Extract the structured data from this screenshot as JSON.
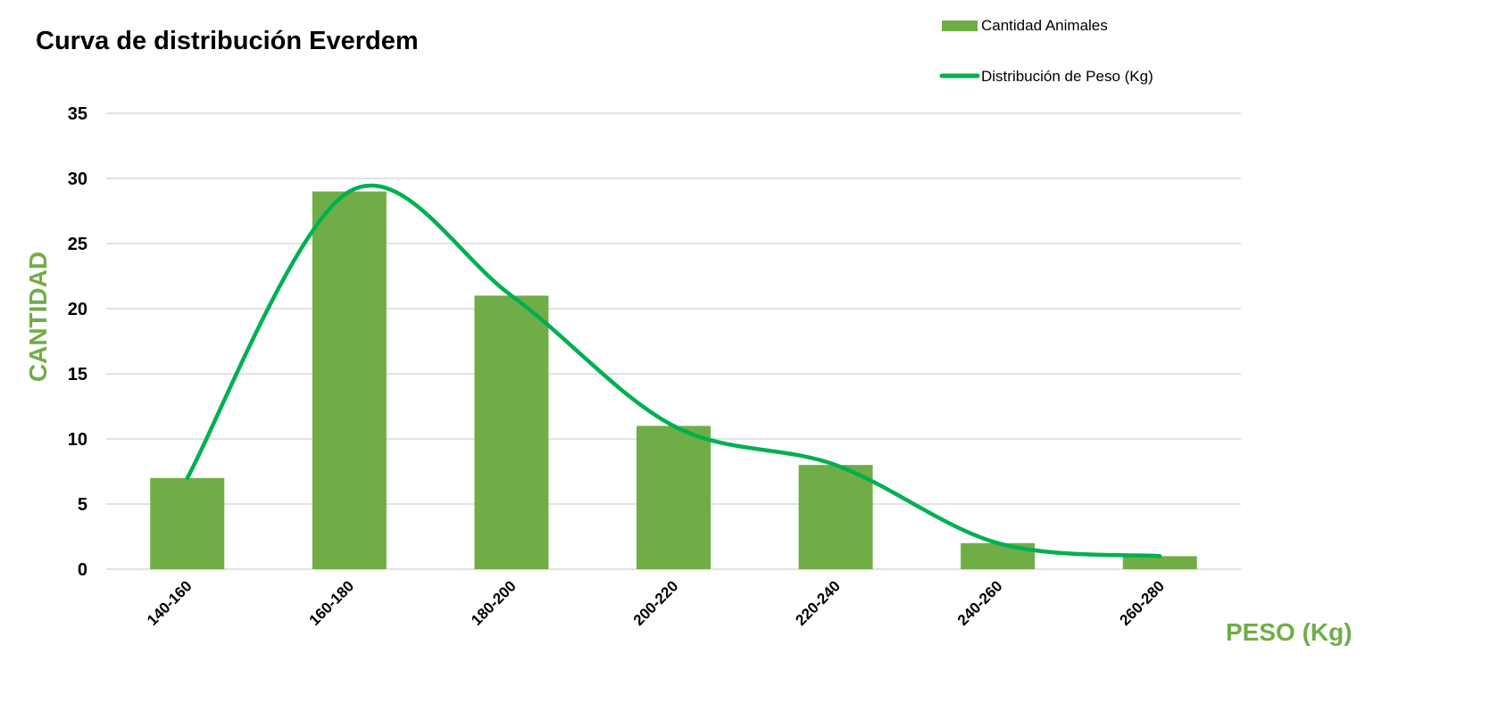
{
  "colors": {
    "bar": "#70AD47",
    "line": "#00B050",
    "axis_label": "#70AD47",
    "grid": "#D9D9D9",
    "text": "#000000"
  },
  "chart_data": {
    "type": "bar",
    "title": "Curva de distribución Everdem",
    "xlabel": "PESO (Kg)",
    "ylabel": "CANTIDAD",
    "categories": [
      "140-160",
      "160-180",
      "180-200",
      "200-220",
      "220-240",
      "240-260",
      "260-280"
    ],
    "series": [
      {
        "name": "Cantidad Animales",
        "type": "bar",
        "values": [
          7,
          29,
          21,
          11,
          8,
          2,
          1
        ]
      },
      {
        "name": "Distribución de Peso (Kg)",
        "type": "line",
        "smooth": true,
        "values": [
          7,
          29,
          21,
          11,
          8,
          2,
          1
        ]
      }
    ],
    "ylim": [
      0,
      35
    ],
    "yticks": [
      0,
      5,
      10,
      15,
      20,
      25,
      30,
      35
    ],
    "grid": true,
    "legend": "top-right"
  }
}
